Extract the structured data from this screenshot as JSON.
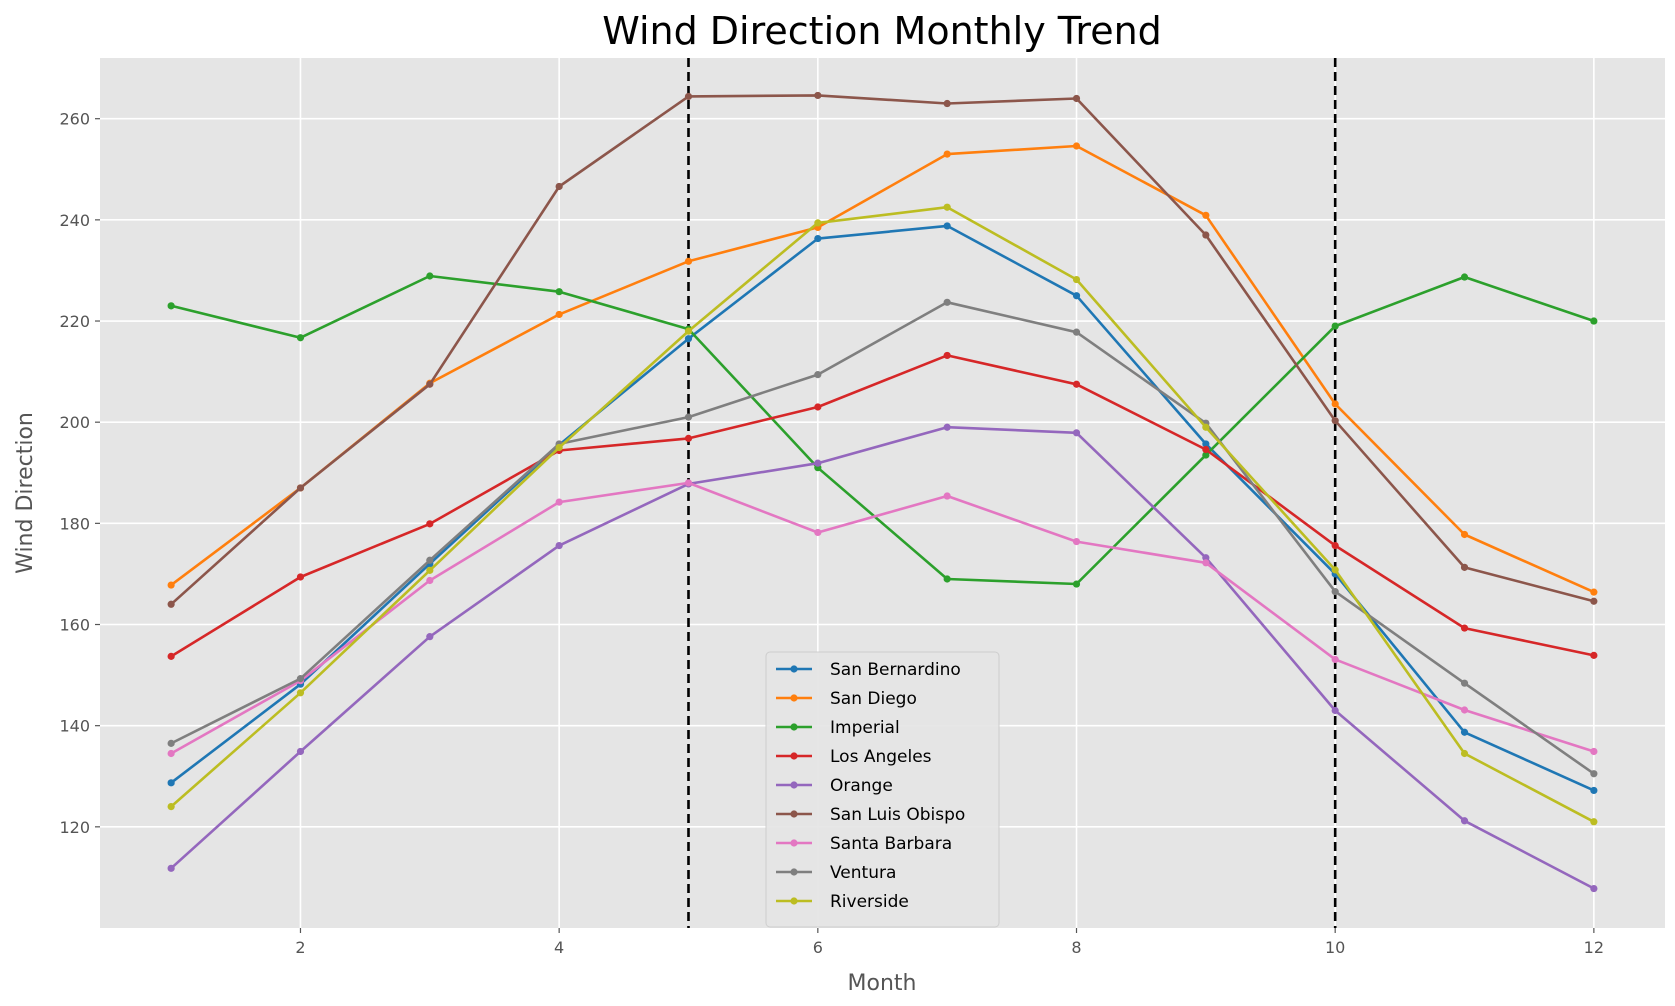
{
  "chart_data": {
    "type": "line",
    "title": "Wind Direction Monthly Trend",
    "xlabel": "Month",
    "ylabel": "Wind Direction",
    "x": [
      1,
      2,
      3,
      4,
      5,
      6,
      7,
      8,
      9,
      10,
      11,
      12
    ],
    "xlim": [
      0.45,
      12.55
    ],
    "ylim": [
      100,
      272
    ],
    "xticks": [
      2,
      4,
      6,
      8,
      10,
      12
    ],
    "yticks": [
      120,
      140,
      160,
      180,
      200,
      220,
      240,
      260
    ],
    "grid": true,
    "vlines": [
      5,
      10
    ],
    "legend_position": "lower-center",
    "series": [
      {
        "name": "San Bernardino",
        "color": "#1f77b4",
        "values": [
          128.7,
          148.2,
          172.0,
          195.5,
          216.5,
          236.3,
          238.8,
          225.0,
          195.7,
          170.0,
          138.7,
          127.2
        ]
      },
      {
        "name": "San Diego",
        "color": "#ff7f0e",
        "values": [
          167.8,
          187.0,
          207.7,
          221.3,
          231.8,
          238.5,
          253.0,
          254.6,
          240.9,
          203.6,
          177.8,
          166.4
        ]
      },
      {
        "name": "Imperial",
        "color": "#2ca02c",
        "values": [
          223.0,
          216.7,
          228.9,
          225.8,
          218.4,
          191.0,
          169.0,
          168.0,
          193.5,
          219.0,
          228.7,
          220.0
        ]
      },
      {
        "name": "Los Angeles",
        "color": "#d62728",
        "values": [
          153.7,
          169.4,
          179.9,
          194.4,
          196.8,
          203.0,
          213.2,
          207.5,
          194.6,
          175.6,
          159.3,
          153.9
        ]
      },
      {
        "name": "Orange",
        "color": "#9467bd",
        "values": [
          111.8,
          134.9,
          157.6,
          175.6,
          187.8,
          191.9,
          199.0,
          197.9,
          173.2,
          143.0,
          121.2,
          107.8
        ]
      },
      {
        "name": "San Luis Obispo",
        "color": "#8c564b",
        "values": [
          164.0,
          187.0,
          207.5,
          246.6,
          264.4,
          264.6,
          263.0,
          264.0,
          237.0,
          200.3,
          171.3,
          164.6
        ]
      },
      {
        "name": "Santa Barbara",
        "color": "#e377c2",
        "values": [
          134.5,
          148.9,
          168.7,
          184.2,
          188.0,
          178.2,
          185.4,
          176.4,
          172.2,
          153.1,
          143.1,
          134.9
        ]
      },
      {
        "name": "Ventura",
        "color": "#7f7f7f",
        "values": [
          136.5,
          149.3,
          172.7,
          195.7,
          201.0,
          209.4,
          223.7,
          217.8,
          199.8,
          166.5,
          148.4,
          130.5
        ]
      },
      {
        "name": "Riverside",
        "color": "#bcbd22",
        "values": [
          124.0,
          146.5,
          170.7,
          195.0,
          218.0,
          239.4,
          242.5,
          228.2,
          199.0,
          170.8,
          134.5,
          121.0
        ]
      }
    ]
  }
}
